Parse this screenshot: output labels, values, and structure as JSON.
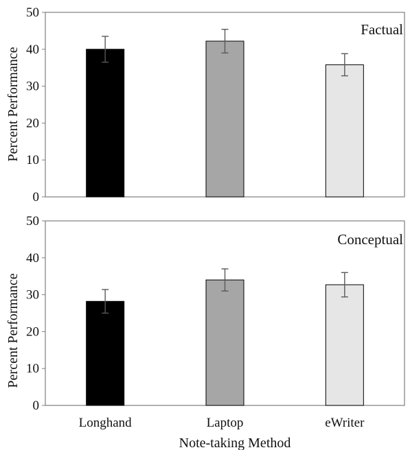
{
  "chart_data": [
    {
      "type": "bar",
      "title": "Factual",
      "categories": [
        "Longhand",
        "Laptop",
        "eWriter"
      ],
      "values": [
        40.0,
        42.2,
        35.8
      ],
      "error": [
        3.5,
        3.2,
        3.0
      ],
      "ylabel": "Percent Performance",
      "ylim": [
        0,
        50
      ],
      "yticks": [
        0,
        10,
        20,
        30,
        40,
        50
      ],
      "grid": false,
      "colors": [
        "#000000",
        "#a6a6a6",
        "#e6e6e6"
      ]
    },
    {
      "type": "bar",
      "title": "Conceptual",
      "categories": [
        "Longhand",
        "Laptop",
        "eWriter"
      ],
      "values": [
        28.2,
        34.0,
        32.7
      ],
      "error": [
        3.2,
        3.0,
        3.3
      ],
      "ylabel": "Percent Performance",
      "xlabel": "Note-taking Method",
      "ylim": [
        0,
        50
      ],
      "yticks": [
        0,
        10,
        20,
        30,
        40,
        50
      ],
      "grid": false,
      "colors": [
        "#000000",
        "#a6a6a6",
        "#e6e6e6"
      ]
    }
  ]
}
